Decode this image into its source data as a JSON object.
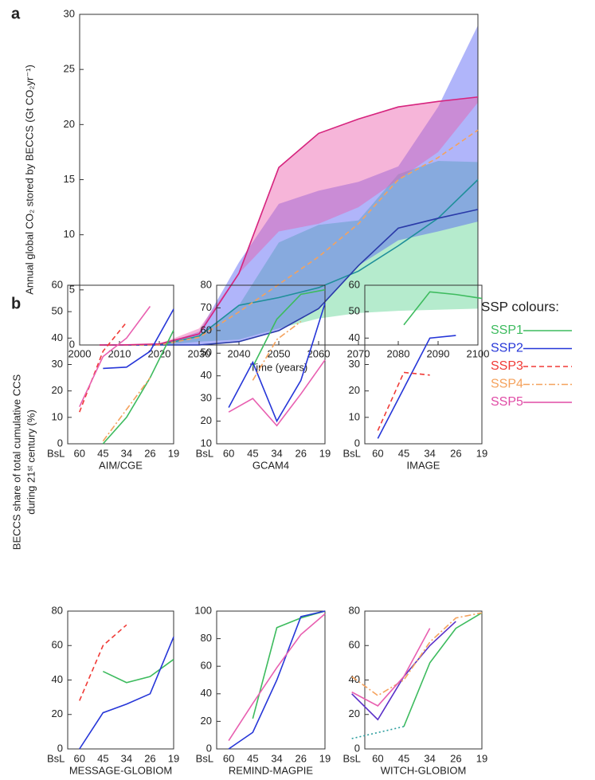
{
  "panel_labels": [
    "a",
    "b"
  ],
  "legend": {
    "title": "SSP colours:",
    "items": [
      {
        "name": "SSP1",
        "color": "#3dbb5e",
        "dash": "solid"
      },
      {
        "name": "SSP2",
        "color": "#2636d8",
        "dash": "solid"
      },
      {
        "name": "SSP3",
        "color": "#f03a36",
        "dash": "dashed"
      },
      {
        "name": "SSP4",
        "color": "#f5a25d",
        "dash": "dashdot"
      },
      {
        "name": "SSP5",
        "color": "#e04ca6",
        "dash": "solid"
      }
    ]
  },
  "panel_b_ylabel": [
    "BECCS share of total cumulative CCS",
    "during 21ˢᵗ century (%)"
  ],
  "chart_data": [
    {
      "type": "line",
      "ylabel": "Annual global CO₂ stored by BECCS (Gt CO₂yr⁻¹)",
      "xlabel": "Time (years)",
      "x": [
        2005,
        2010,
        2020,
        2030,
        2040,
        2050,
        2060,
        2070,
        2080,
        2090,
        2100
      ],
      "xlim": [
        2000,
        2100
      ],
      "xticks": [
        2000,
        2010,
        2020,
        2030,
        2040,
        2050,
        2060,
        2070,
        2080,
        2090,
        2100
      ],
      "ylim": [
        0,
        30
      ],
      "yticks": [
        0,
        5,
        10,
        15,
        20,
        25,
        30
      ],
      "bands": [
        {
          "color": "rgba(70,205,130,0.4)",
          "low": [
            0,
            0,
            0,
            0.3,
            0.5,
            1.5,
            2.4,
            2.9,
            3.1,
            3.2,
            3.3
          ],
          "high": [
            0,
            0,
            0,
            0.9,
            3.6,
            9.3,
            10.9,
            11.3,
            15.5,
            16.7,
            16.6
          ]
        },
        {
          "color": "rgba(80,90,245,0.45)",
          "low": [
            0,
            0,
            0,
            0,
            0.3,
            1.3,
            3.3,
            7.2,
            9.5,
            10.3,
            11.2
          ],
          "high": [
            0,
            0,
            0,
            1.2,
            7.5,
            12.8,
            14,
            14.8,
            16.2,
            21.6,
            29
          ]
        },
        {
          "color": "rgba(235,90,170,0.45)",
          "low": [
            0,
            0,
            0,
            0.9,
            6.5,
            10.3,
            11,
            12.5,
            15,
            17.5,
            22
          ],
          "high": [
            0,
            0,
            0.1,
            1.5,
            6.5,
            16.1,
            19.2,
            20.5,
            21.6,
            22.1,
            22.5
          ]
        }
      ],
      "series": [
        {
          "color": "#1f8f9a",
          "dash": "solid",
          "values": [
            0,
            0,
            0,
            0.8,
            3.6,
            4.3,
            5.2,
            6.7,
            9.0,
            11.5,
            15.0
          ]
        },
        {
          "color": "#2a3aa8",
          "dash": "solid",
          "values": [
            0,
            0,
            0,
            0,
            0.3,
            1.3,
            3.3,
            7.2,
            10.6,
            11.5,
            12.3
          ]
        },
        {
          "color": "#f5a25d",
          "dash": "dashed",
          "values": [
            0,
            0,
            0,
            0.7,
            3.0,
            5.5,
            8.0,
            11.0,
            15.0,
            17.0,
            19.5
          ]
        },
        {
          "color": "#d6247e",
          "dash": "solid",
          "values": [
            0,
            0,
            0.1,
            1.0,
            6.5,
            16.1,
            19.2,
            20.5,
            21.6,
            22.1,
            22.5
          ]
        }
      ]
    },
    {
      "type": "line",
      "xlabel": "AIM/CGE",
      "categories": [
        "BsL",
        "60",
        "45",
        "34",
        "26",
        "19"
      ],
      "ylim": [
        0,
        60
      ],
      "yticks": [
        0,
        10,
        20,
        30,
        40,
        50,
        60
      ],
      "series": [
        {
          "color": "#3dbb5e",
          "dash": "solid",
          "values": [
            null,
            null,
            0,
            10,
            25,
            43
          ]
        },
        {
          "color": "#2636d8",
          "dash": "solid",
          "values": [
            null,
            null,
            28.5,
            29,
            35,
            51
          ]
        },
        {
          "color": "#f03a36",
          "dash": "dashed",
          "values": [
            null,
            12,
            35,
            46,
            null,
            null
          ]
        },
        {
          "color": "#f5a25d",
          "dash": "dashdot",
          "values": [
            null,
            null,
            1,
            13,
            25,
            null
          ]
        },
        {
          "color": "#e85fb0",
          "dash": "solid",
          "values": [
            null,
            14,
            33,
            40,
            52,
            null
          ]
        }
      ]
    },
    {
      "type": "line",
      "xlabel": "GCAM4",
      "categories": [
        "BsL",
        "60",
        "45",
        "34",
        "26",
        "19"
      ],
      "ylim": [
        10,
        80
      ],
      "yticks": [
        10,
        20,
        30,
        40,
        50,
        60,
        70,
        80
      ],
      "series": [
        {
          "color": "#3dbb5e",
          "dash": "solid",
          "values": [
            null,
            null,
            44,
            65,
            76,
            78
          ]
        },
        {
          "color": "#2636d8",
          "dash": "solid",
          "values": [
            null,
            26,
            46,
            20,
            38,
            72
          ]
        },
        {
          "color": "#f5a25d",
          "dash": "dashdot",
          "values": [
            null,
            null,
            38,
            56,
            64,
            null
          ]
        },
        {
          "color": "#e85fb0",
          "dash": "solid",
          "values": [
            null,
            24,
            30,
            18,
            32,
            47
          ]
        }
      ]
    },
    {
      "type": "line",
      "xlabel": "IMAGE",
      "categories": [
        "BsL",
        "60",
        "45",
        "34",
        "26",
        "19"
      ],
      "ylim": [
        0,
        60
      ],
      "yticks": [
        0,
        10,
        20,
        30,
        40,
        50,
        60
      ],
      "series": [
        {
          "color": "#3dbb5e",
          "dash": "solid",
          "values": [
            null,
            null,
            45,
            57.5,
            56.5,
            55
          ]
        },
        {
          "color": "#2636d8",
          "dash": "solid",
          "values": [
            null,
            2,
            21,
            40,
            41,
            null
          ]
        },
        {
          "color": "#f03a36",
          "dash": "dashed",
          "values": [
            null,
            5,
            27,
            26,
            null,
            null
          ]
        }
      ]
    },
    {
      "type": "line",
      "xlabel": "MESSAGE-GLOBIOM",
      "categories": [
        "BsL",
        "60",
        "45",
        "34",
        "26",
        "19"
      ],
      "ylim": [
        0,
        80
      ],
      "yticks": [
        0,
        20,
        40,
        60,
        80
      ],
      "series": [
        {
          "color": "#3dbb5e",
          "dash": "solid",
          "values": [
            null,
            null,
            45,
            38.5,
            42,
            52
          ]
        },
        {
          "color": "#2636d8",
          "dash": "solid",
          "values": [
            null,
            0,
            21,
            26,
            32,
            65
          ]
        },
        {
          "color": "#f03a36",
          "dash": "dashed",
          "values": [
            null,
            28,
            60,
            72,
            null,
            null
          ]
        }
      ]
    },
    {
      "type": "line",
      "xlabel": "REMIND-MAGPIE",
      "categories": [
        "BsL",
        "60",
        "45",
        "34",
        "26",
        "19"
      ],
      "ylim": [
        0,
        100
      ],
      "yticks": [
        0,
        20,
        40,
        60,
        80,
        100
      ],
      "series": [
        {
          "color": "#3dbb5e",
          "dash": "solid",
          "values": [
            null,
            null,
            22,
            88,
            95,
            100
          ]
        },
        {
          "color": "#2636d8",
          "dash": "solid",
          "values": [
            null,
            0,
            12,
            50,
            96,
            100
          ]
        },
        {
          "color": "#e85fb0",
          "dash": "solid",
          "values": [
            null,
            6,
            33,
            59,
            83,
            98
          ]
        }
      ]
    },
    {
      "type": "line",
      "xlabel": "WITCH-GLOBIOM",
      "categories": [
        "BsL",
        "60",
        "45",
        "34",
        "26",
        "19"
      ],
      "ylim": [
        0,
        80
      ],
      "yticks": [
        0,
        20,
        40,
        60,
        80
      ],
      "series": [
        {
          "color": "#2a9d9d",
          "dash": "dotted",
          "values": [
            6,
            9.5,
            13,
            null,
            null,
            null
          ]
        },
        {
          "color": "#3dbb5e",
          "dash": "solid",
          "values": [
            null,
            null,
            13,
            50,
            70,
            79
          ]
        },
        {
          "color": "#5a2fc8",
          "dash": "solid",
          "values": [
            32,
            17,
            42,
            60,
            74,
            null
          ]
        },
        {
          "color": "#f5a25d",
          "dash": "dashdot",
          "values": [
            42,
            31,
            40,
            62,
            76,
            79
          ]
        },
        {
          "color": "#e85fb0",
          "dash": "solid",
          "values": [
            33,
            25,
            42,
            70,
            null,
            null
          ]
        }
      ]
    }
  ]
}
